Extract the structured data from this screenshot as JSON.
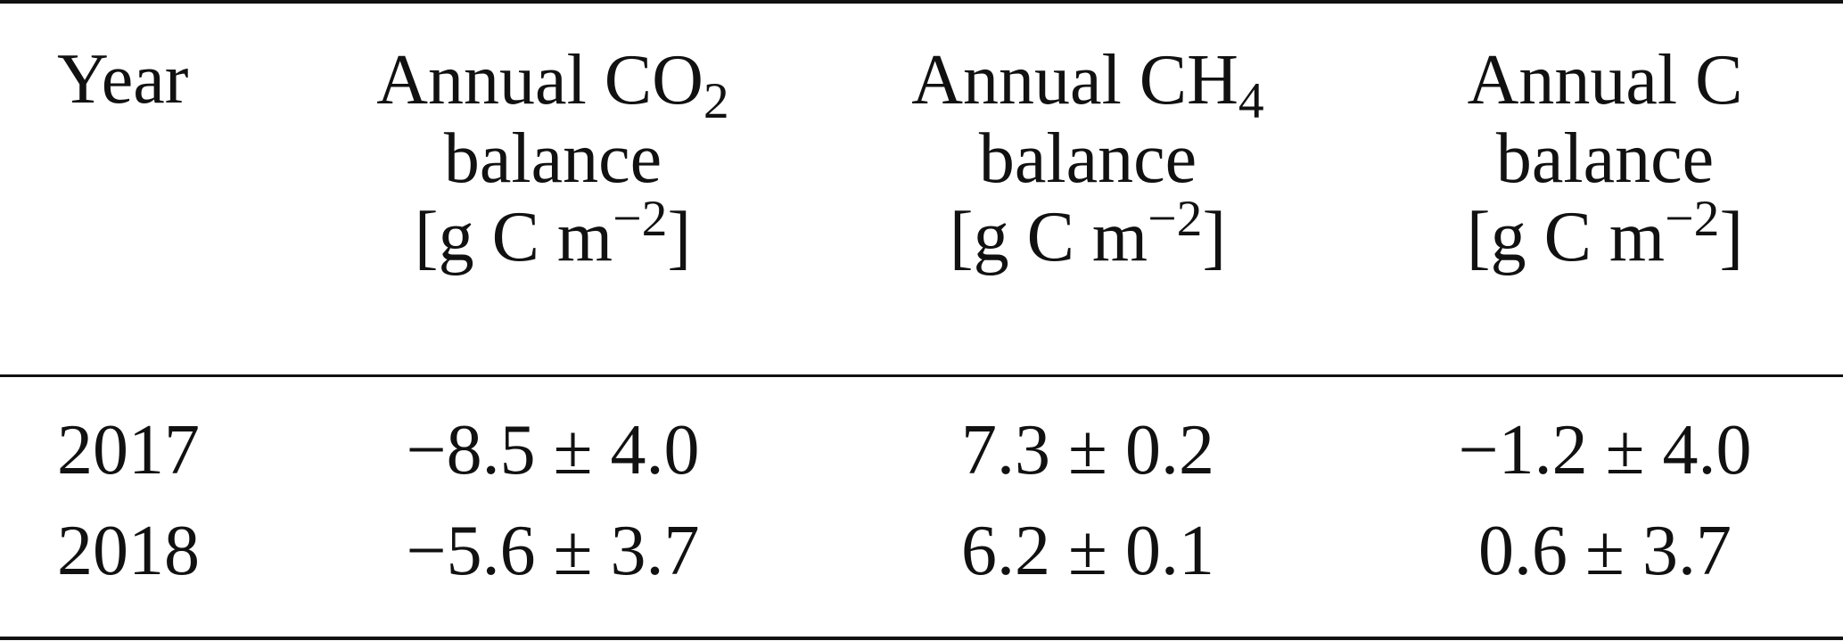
{
  "table": {
    "headers": {
      "year": "Year",
      "col1": {
        "line1_prefix": "Annual CO",
        "line1_sub": "2",
        "line2": "balance",
        "unit_prefix": "[g C m",
        "unit_sup": "−2",
        "unit_suffix": "]"
      },
      "col2": {
        "line1_prefix": "Annual CH",
        "line1_sub": "4",
        "line2": "balance",
        "unit_prefix": "[g C m",
        "unit_sup": "−2",
        "unit_suffix": "]"
      },
      "col3": {
        "line1_prefix": "Annual C",
        "line2": "balance",
        "unit_prefix": "[g C m",
        "unit_sup": "−2",
        "unit_suffix": "]"
      }
    },
    "rows": [
      {
        "year": "2017",
        "co2": "−8.5 ± 4.0",
        "ch4": "7.3 ± 0.2",
        "c": "−1.2 ± 4.0"
      },
      {
        "year": "2018",
        "co2": "−5.6 ± 3.7",
        "ch4": "6.2 ± 0.1",
        "c": "0.6 ± 3.7"
      }
    ]
  }
}
